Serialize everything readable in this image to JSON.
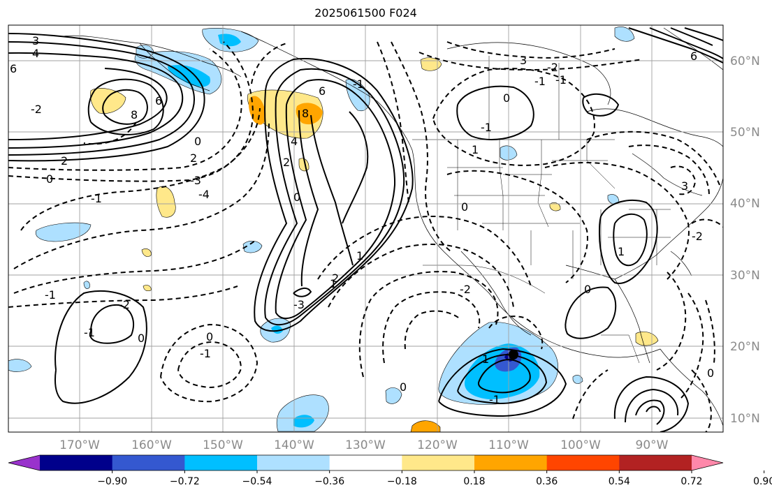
{
  "title": "2025061500 F024",
  "map": {
    "projection": "cylindrical",
    "lon_range": [
      -180,
      -80
    ],
    "lat_range": [
      8,
      65
    ],
    "gridlines": true,
    "latitude_labels": [
      "60°N",
      "50°N",
      "40°N",
      "30°N",
      "20°N",
      "10°N"
    ],
    "longitude_labels": [
      "170°W",
      "160°W",
      "150°W",
      "140°W",
      "130°W",
      "120°W",
      "110°W",
      "100°W",
      "90°W"
    ],
    "features": [
      "coastlines",
      "US state borders",
      "country borders"
    ]
  },
  "contours": {
    "style": "solid positive, dashed negative",
    "labels": [
      "3",
      "4",
      "6",
      "2",
      "0",
      "-2",
      "6",
      "8",
      "2",
      "0",
      "-1",
      "8",
      "6",
      "4",
      "2",
      "0",
      "-1",
      "-3",
      "-4",
      "1",
      "-1",
      "0",
      "-3",
      "-1",
      "-2",
      "-1",
      "1",
      "2",
      "0",
      "-2",
      "-1",
      "3",
      "0",
      "1",
      "-1",
      "0",
      "-1",
      "-2",
      "0",
      "-1",
      "1",
      "0",
      "0",
      "1",
      "3",
      "-2",
      "6"
    ]
  },
  "colorbar": {
    "colors": [
      "#9932cc",
      "#00008b",
      "#3458d0",
      "#00bfff",
      "#aee0ff",
      "#ffffff",
      "#ffe88a",
      "#ffa500",
      "#ff4500",
      "#b22222",
      "#ff88aa"
    ],
    "tick_labels": [
      "−0.90",
      "−0.72",
      "−0.54",
      "−0.36",
      "−0.18",
      "0.18",
      "0.36",
      "0.54",
      "0.72",
      "0.90"
    ],
    "extend": "both"
  }
}
